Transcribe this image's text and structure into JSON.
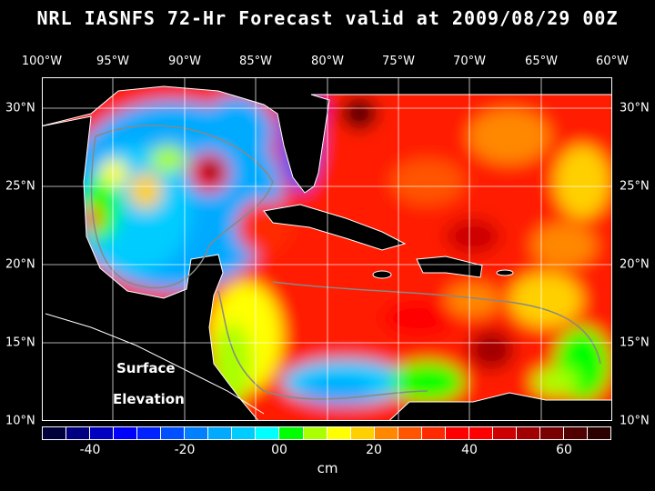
{
  "title": "NRL IASNFS  72-Hr Forecast valid at 2009/08/29 00Z",
  "lon_labels": [
    "100°W",
    "95°W",
    "90°W",
    "85°W",
    "80°W",
    "75°W",
    "70°W",
    "65°W",
    "60°W"
  ],
  "lat_labels": [
    "30°N",
    "25°N",
    "20°N",
    "15°N",
    "10°N"
  ],
  "annotation": {
    "line1": "Surface",
    "line2": "Elevation"
  },
  "colorbar": {
    "unit": "cm",
    "range": [
      -50,
      70
    ],
    "step": 5,
    "tick_labels": [
      "-40",
      "-20",
      "00",
      "20",
      "40",
      "60"
    ],
    "colors": [
      "#00003a",
      "#000080",
      "#0000c0",
      "#0000ff",
      "#0022ff",
      "#0050ff",
      "#0080ff",
      "#00aaff",
      "#00ccff",
      "#00ffff",
      "#00ff00",
      "#aaff00",
      "#ffff00",
      "#ffd000",
      "#ff8800",
      "#ff5500",
      "#ff2a00",
      "#ff0000",
      "#ff0000",
      "#cc0000",
      "#a00000",
      "#780000",
      "#500000",
      "#2a0000"
    ]
  }
}
